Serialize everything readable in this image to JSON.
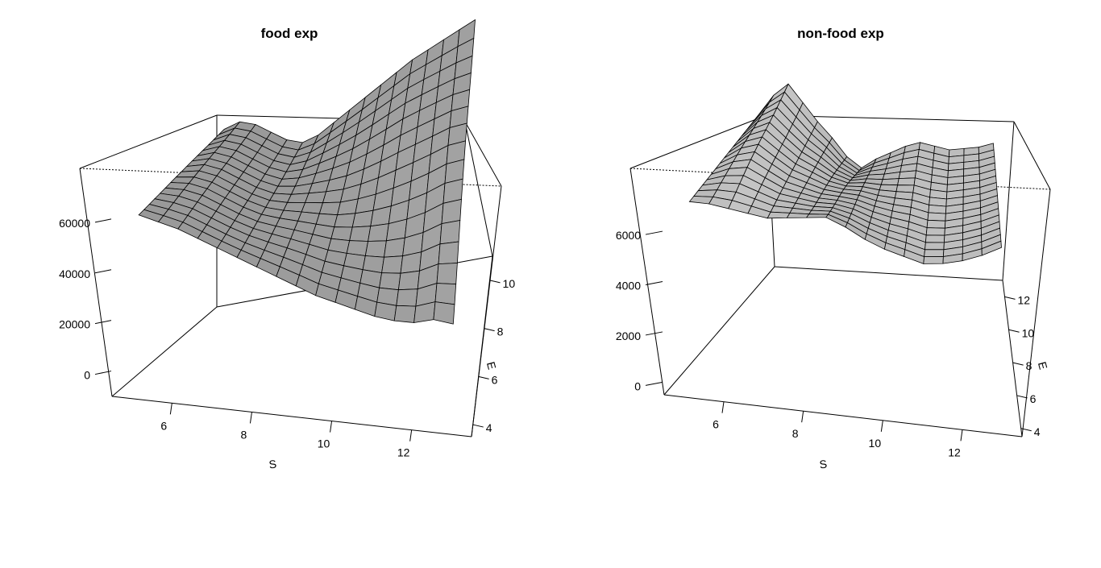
{
  "chart_data": [
    {
      "type": "surface3d",
      "title": "food exp",
      "xlabel": "S",
      "ylabel": "E",
      "zlabel": "",
      "x_ticks": [
        6,
        8,
        10,
        12
      ],
      "y_ticks": [
        4,
        6,
        8,
        10
      ],
      "z_ticks": [
        0,
        20000,
        40000,
        60000
      ],
      "x_range": [
        4.5,
        13.5
      ],
      "y_range": [
        3.5,
        11
      ],
      "z_range": [
        -10000,
        80000
      ],
      "surface_color": "#a6a6a6",
      "surface_shaded": "#8c8c8c",
      "mesh_columns": 17,
      "mesh_rows": 17,
      "s_values": [
        5.0,
        5.5,
        6.0,
        6.5,
        7.0,
        7.5,
        8.0,
        8.5,
        9.0,
        9.5,
        10.0,
        10.5,
        11.0,
        11.5,
        12.0,
        12.5,
        13.0
      ],
      "e_values": [
        4.0,
        4.4,
        4.8,
        5.2,
        5.6,
        6.0,
        6.4,
        6.8,
        7.2,
        7.6,
        8.0,
        8.4,
        8.8,
        9.2,
        9.6,
        10.0,
        10.4
      ],
      "front_edge_exp": [
        60000,
        58000,
        56000,
        53000,
        50000,
        47000,
        44000,
        41000,
        38000,
        35000,
        33000,
        31000,
        29000,
        28000,
        28000,
        30000,
        29000
      ],
      "back_edge_exp": [
        62000,
        64000,
        62000,
        58000,
        54000,
        52000,
        54000,
        58000,
        62000,
        66000,
        70000,
        74000,
        78000,
        81000,
        84000,
        87000,
        90000
      ]
    },
    {
      "type": "surface3d",
      "title": "non-food exp",
      "xlabel": "S",
      "ylabel": "E",
      "zlabel": "",
      "x_ticks": [
        6,
        8,
        10,
        12
      ],
      "y_ticks": [
        4,
        6,
        8,
        10,
        12
      ],
      "z_ticks": [
        0,
        2000,
        4000,
        6000
      ],
      "x_range": [
        4.5,
        13.5
      ],
      "y_range": [
        3.5,
        13
      ],
      "z_range": [
        -500,
        8500
      ],
      "surface_color": "#ececec",
      "surface_shaded": "#8a8a8a",
      "mesh_columns": 17,
      "mesh_rows": 17,
      "s_values": [
        5.0,
        5.5,
        6.0,
        6.5,
        7.0,
        7.5,
        8.0,
        8.5,
        9.0,
        9.5,
        10.0,
        10.5,
        11.0,
        11.5,
        12.0,
        12.5,
        13.0
      ],
      "e_values": [
        4.0,
        4.4,
        4.8,
        5.2,
        5.6,
        6.0,
        6.4,
        6.8,
        7.2,
        7.6,
        8.0,
        8.4,
        8.8,
        9.2,
        9.6,
        10.0,
        10.4
      ],
      "front_edge_exp": [
        7000,
        7000,
        6900,
        6800,
        6700,
        6800,
        6900,
        7000,
        6700,
        6300,
        6000,
        5800,
        5600,
        5700,
        5900,
        6200,
        6600
      ],
      "back_edge_exp": [
        7000,
        7800,
        8300,
        7600,
        6900,
        6300,
        5600,
        5200,
        5600,
        5900,
        6200,
        6400,
        6300,
        6200,
        6300,
        6400,
        6600
      ]
    }
  ]
}
